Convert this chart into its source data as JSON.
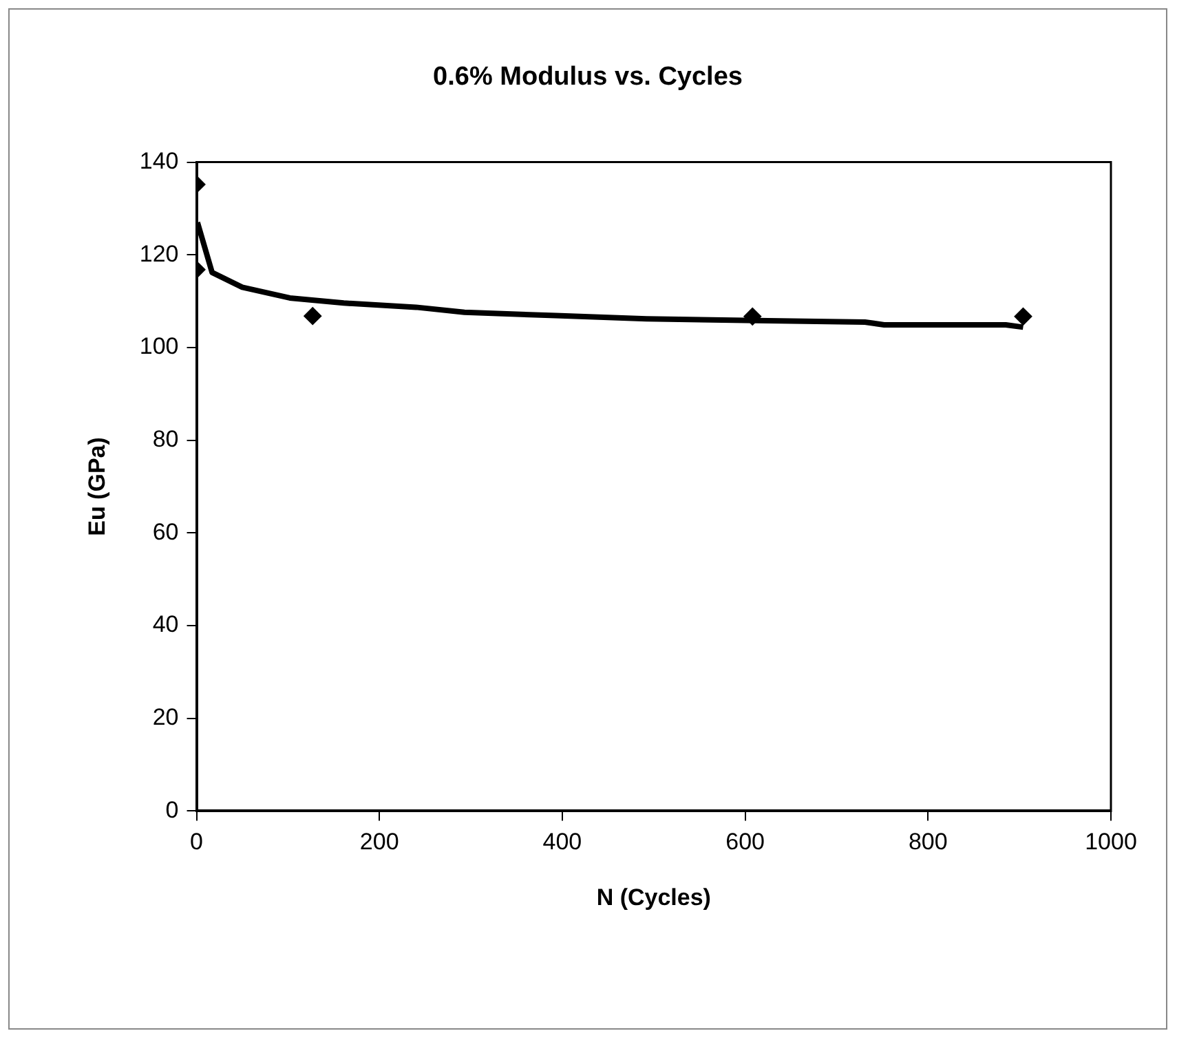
{
  "chart_data": {
    "type": "scatter",
    "title": "0.6% Modulus vs. Cycles",
    "xlabel": "N (Cycles)",
    "ylabel": "Eu (GPa)",
    "xlim": [
      0,
      1000
    ],
    "xticks": [
      0,
      200,
      400,
      600,
      800,
      1000
    ],
    "ylim": [
      0,
      140
    ],
    "yticks": [
      0,
      20,
      40,
      60,
      80,
      100,
      120,
      140
    ],
    "grid": false,
    "legend": false,
    "marker": "diamond",
    "series": [
      {
        "color": "#000000",
        "x": [
          0,
          0,
          127,
          608,
          904
        ],
        "values": [
          135.2,
          116.8,
          106.8,
          106.7,
          106.7
        ]
      },
      {
        "type": "line",
        "color": "#000000",
        "marker": "none",
        "x": [
          1,
          17,
          50,
          102,
          161,
          240,
          293,
          393,
          492,
          625,
          731,
          752,
          885,
          904
        ],
        "values": [
          127,
          116.2,
          113,
          110.7,
          109.6,
          108.7,
          107.6,
          106.9,
          106.2,
          105.8,
          105.5,
          104.9,
          104.9,
          104.4
        ]
      }
    ]
  }
}
